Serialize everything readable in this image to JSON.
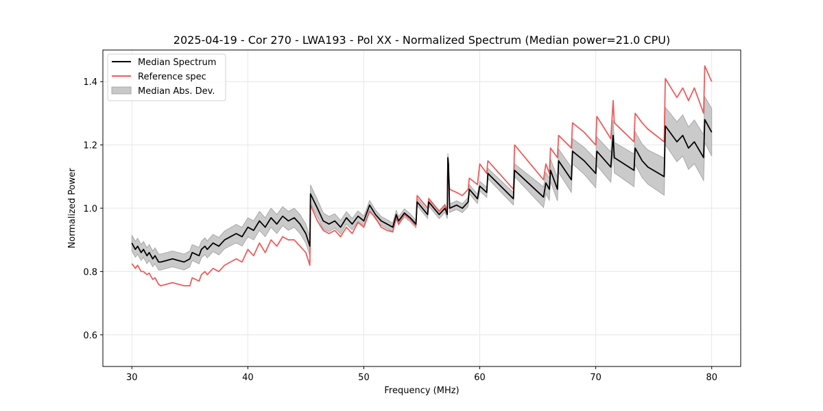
{
  "chart_data": {
    "type": "line",
    "title": "2025-04-19 - Cor 270 - LWA193 - Pol XX - Normalized Spectrum (Median power=21.0 CPU)",
    "xlabel": "Frequency (MHz)",
    "ylabel": "Normalized Power",
    "xlim": [
      27.5,
      82.5
    ],
    "ylim": [
      0.5,
      1.5
    ],
    "xticks": [
      30,
      40,
      50,
      60,
      70,
      80
    ],
    "xtick_labels": [
      "30",
      "40",
      "50",
      "60",
      "70",
      "80"
    ],
    "yticks": [
      0.6,
      0.8,
      1.0,
      1.2,
      1.4
    ],
    "ytick_labels": [
      "0.6",
      "0.8",
      "1.0",
      "1.2",
      "1.4"
    ],
    "grid": true,
    "legend_position": "top-left",
    "legend": [
      {
        "label": "Median Spectrum",
        "kind": "line",
        "color": "#000000"
      },
      {
        "label": "Reference spec",
        "kind": "line",
        "color": "#f05a5a"
      },
      {
        "label": "Median Abs. Dev.",
        "kind": "patch",
        "color": "#bdbdbd"
      }
    ],
    "series": [
      {
        "name": "Median Spectrum",
        "color": "#000000",
        "x": [
          30.0,
          30.3,
          30.5,
          30.8,
          31.0,
          31.3,
          31.5,
          31.8,
          32.0,
          32.3,
          32.5,
          33.0,
          33.5,
          34.0,
          34.5,
          35.0,
          35.2,
          35.5,
          35.8,
          36.0,
          36.3,
          36.5,
          37.0,
          37.5,
          38.0,
          38.5,
          39.0,
          39.5,
          40.0,
          40.5,
          41.0,
          41.5,
          42.0,
          42.5,
          43.0,
          43.5,
          44.0,
          44.5,
          45.0,
          45.35,
          45.4,
          46.0,
          46.5,
          47.0,
          47.5,
          48.0,
          48.5,
          49.0,
          49.5,
          50.0,
          50.5,
          51.0,
          51.5,
          52.0,
          52.5,
          52.8,
          53.0,
          53.5,
          54.0,
          54.5,
          54.6,
          55.5,
          55.6,
          56.5,
          57.0,
          57.2,
          57.25,
          57.3,
          57.4,
          58.0,
          58.5,
          59.0,
          59.1,
          59.8,
          60.0,
          60.6,
          60.7,
          62.9,
          63.0,
          65.5,
          65.7,
          66.0,
          66.1,
          66.7,
          66.8,
          67.9,
          68.0,
          69.0,
          70.0,
          70.1,
          71.3,
          71.5,
          71.6,
          73.3,
          73.4,
          74.0,
          74.5,
          75.9,
          76.0,
          77.0,
          77.5,
          78.0,
          78.5,
          79.3,
          79.4,
          80.0
        ],
        "y": [
          0.89,
          0.87,
          0.88,
          0.86,
          0.87,
          0.85,
          0.86,
          0.84,
          0.85,
          0.83,
          0.83,
          0.835,
          0.84,
          0.835,
          0.83,
          0.84,
          0.86,
          0.855,
          0.85,
          0.87,
          0.88,
          0.87,
          0.89,
          0.88,
          0.9,
          0.91,
          0.92,
          0.91,
          0.94,
          0.93,
          0.96,
          0.94,
          0.97,
          0.95,
          0.975,
          0.96,
          0.97,
          0.95,
          0.92,
          0.88,
          1.045,
          1.0,
          0.96,
          0.95,
          0.96,
          0.94,
          0.97,
          0.95,
          0.975,
          0.96,
          1.01,
          0.98,
          0.96,
          0.95,
          0.94,
          0.98,
          0.96,
          0.985,
          0.97,
          0.95,
          1.02,
          0.98,
          1.02,
          0.98,
          1.0,
          0.98,
          1.16,
          1.14,
          1.0,
          1.01,
          1.0,
          1.02,
          1.06,
          1.03,
          1.07,
          1.05,
          1.11,
          1.03,
          1.12,
          1.035,
          1.08,
          1.06,
          1.12,
          1.06,
          1.15,
          1.09,
          1.18,
          1.15,
          1.11,
          1.18,
          1.13,
          1.23,
          1.16,
          1.12,
          1.19,
          1.15,
          1.13,
          1.1,
          1.26,
          1.21,
          1.23,
          1.19,
          1.21,
          1.16,
          1.28,
          1.24
        ]
      },
      {
        "name": "Reference spec",
        "color": "#f05a5a",
        "x": [
          30.0,
          30.3,
          30.5,
          30.8,
          31.0,
          31.3,
          31.5,
          31.8,
          32.0,
          32.3,
          32.5,
          33.0,
          33.5,
          34.0,
          34.5,
          35.0,
          35.2,
          35.5,
          35.8,
          36.0,
          36.3,
          36.5,
          37.0,
          37.5,
          38.0,
          38.5,
          39.0,
          39.5,
          40.0,
          40.5,
          41.0,
          41.5,
          42.0,
          42.5,
          43.0,
          43.5,
          44.0,
          44.5,
          45.0,
          45.35,
          45.4,
          46.0,
          46.5,
          47.0,
          47.5,
          48.0,
          48.5,
          49.0,
          49.5,
          50.0,
          50.5,
          51.0,
          51.5,
          52.0,
          52.5,
          52.8,
          53.0,
          53.5,
          54.0,
          54.5,
          54.6,
          55.5,
          55.6,
          56.5,
          57.0,
          57.2,
          57.25,
          57.3,
          57.4,
          58.0,
          58.5,
          59.0,
          59.1,
          59.8,
          60.0,
          60.6,
          60.7,
          62.9,
          63.0,
          65.5,
          65.7,
          66.0,
          66.1,
          66.7,
          66.8,
          67.9,
          68.0,
          69.0,
          70.0,
          70.1,
          71.3,
          71.5,
          71.6,
          73.3,
          73.4,
          74.0,
          74.5,
          75.9,
          76.0,
          77.0,
          77.5,
          78.0,
          78.5,
          79.3,
          79.4,
          80.0
        ],
        "y": [
          0.825,
          0.81,
          0.82,
          0.8,
          0.8,
          0.79,
          0.795,
          0.775,
          0.78,
          0.76,
          0.755,
          0.76,
          0.765,
          0.76,
          0.755,
          0.755,
          0.78,
          0.775,
          0.77,
          0.79,
          0.8,
          0.79,
          0.81,
          0.8,
          0.82,
          0.83,
          0.84,
          0.83,
          0.87,
          0.85,
          0.89,
          0.86,
          0.9,
          0.88,
          0.91,
          0.9,
          0.9,
          0.88,
          0.86,
          0.82,
          1.01,
          0.96,
          0.93,
          0.92,
          0.93,
          0.91,
          0.94,
          0.92,
          0.955,
          0.94,
          0.99,
          0.97,
          0.94,
          0.93,
          0.925,
          0.97,
          0.95,
          0.98,
          0.965,
          0.945,
          1.04,
          1.0,
          1.03,
          0.99,
          1.01,
          0.99,
          1.14,
          1.12,
          1.06,
          1.05,
          1.04,
          1.06,
          1.095,
          1.075,
          1.14,
          1.11,
          1.15,
          1.06,
          1.2,
          1.09,
          1.14,
          1.11,
          1.19,
          1.16,
          1.23,
          1.19,
          1.27,
          1.24,
          1.2,
          1.29,
          1.22,
          1.34,
          1.27,
          1.21,
          1.3,
          1.27,
          1.25,
          1.21,
          1.41,
          1.35,
          1.38,
          1.34,
          1.38,
          1.3,
          1.45,
          1.4
        ]
      }
    ],
    "band": {
      "name": "Median Abs. Dev.",
      "color": "#bdbdbd",
      "halfwidth_x": [
        30.0,
        35.0,
        40.0,
        45.0,
        50.0,
        55.0,
        60.0,
        63.0,
        66.0,
        70.0,
        75.0,
        80.0
      ],
      "halfwidth": [
        0.025,
        0.025,
        0.03,
        0.03,
        0.015,
        0.012,
        0.015,
        0.02,
        0.035,
        0.045,
        0.055,
        0.075
      ]
    }
  }
}
